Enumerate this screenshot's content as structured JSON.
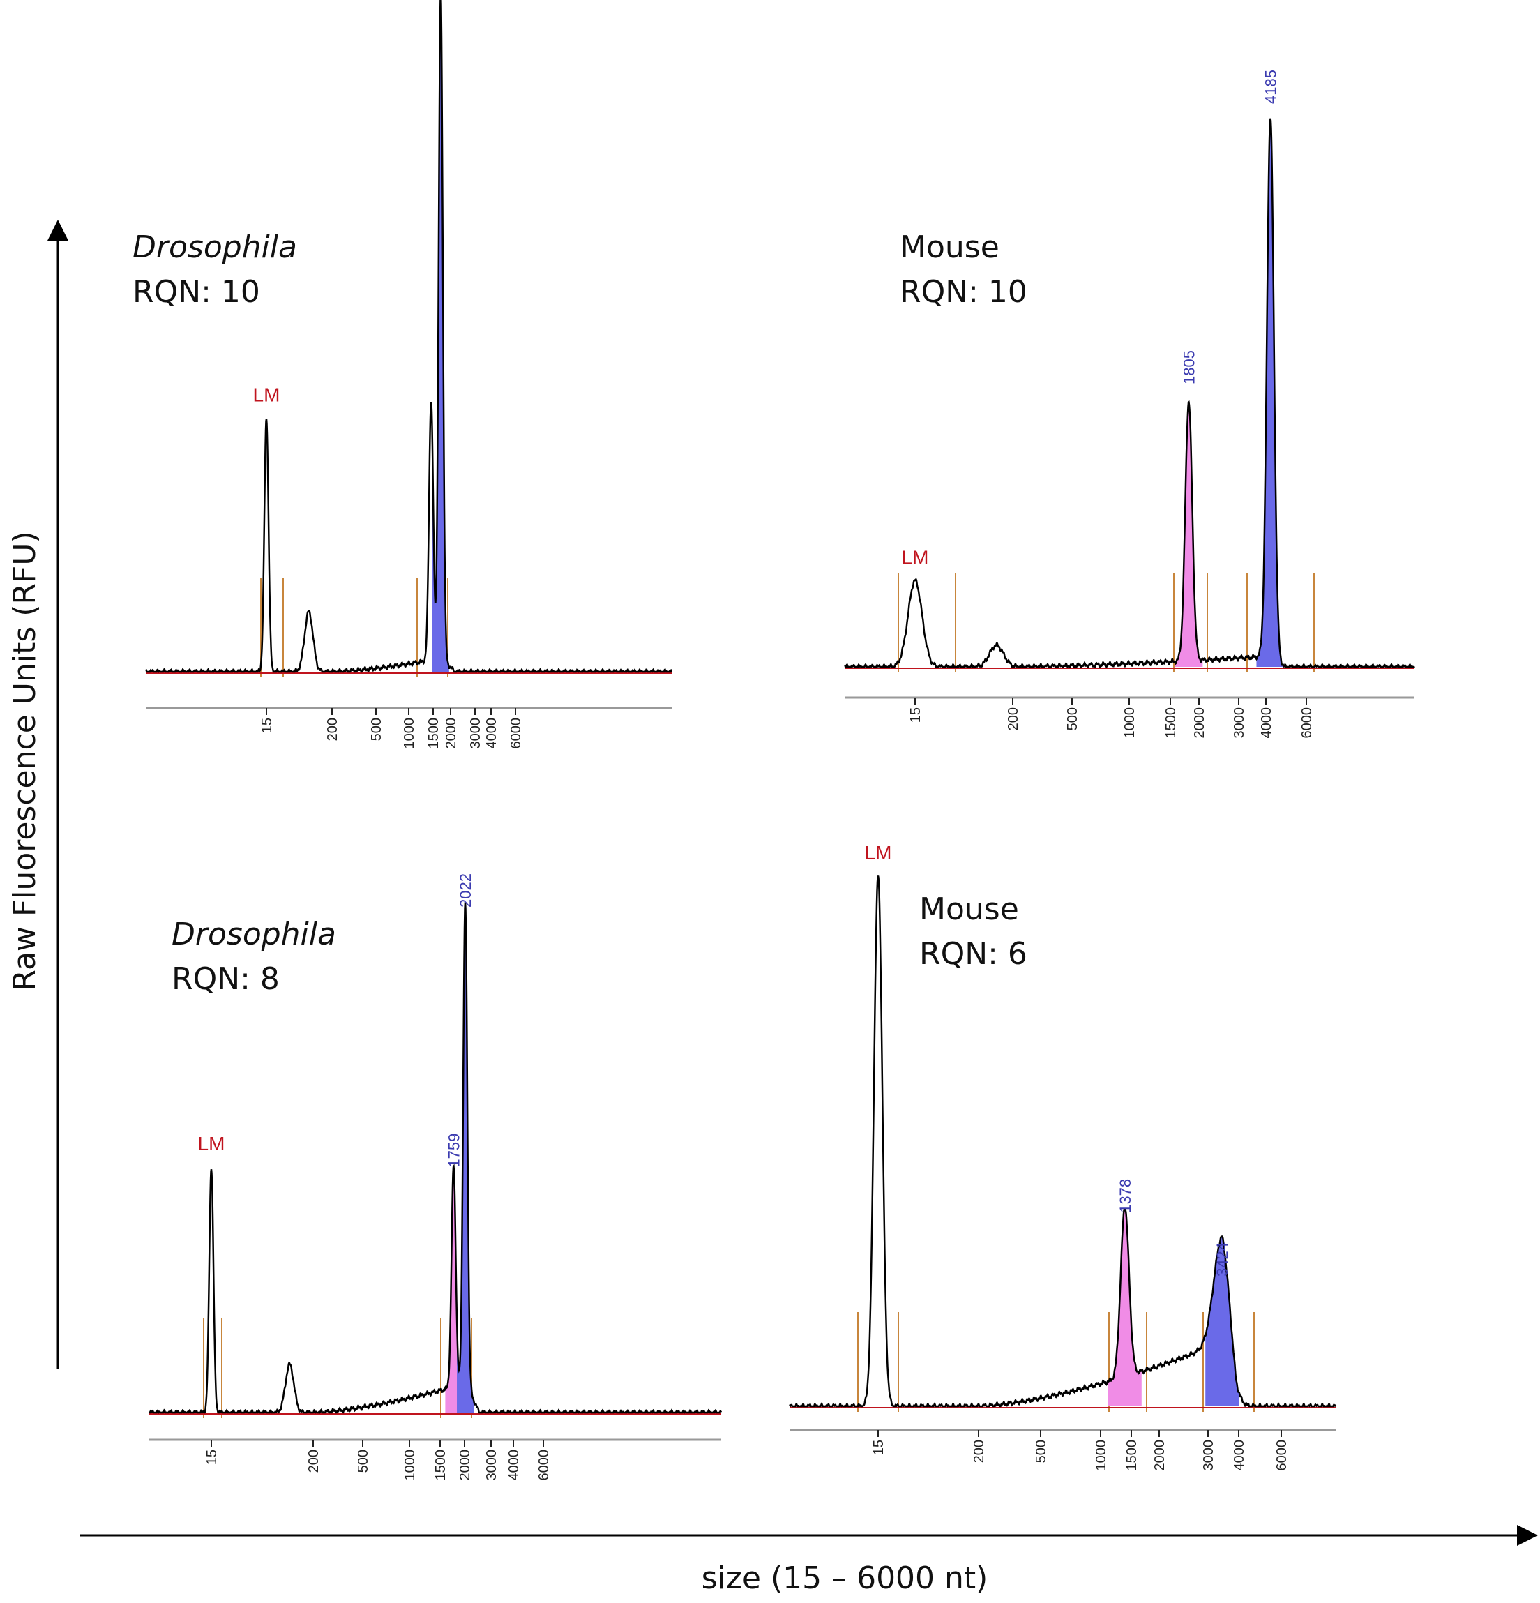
{
  "y_axis_label": "Raw Fluorescence Units (RFU)",
  "x_axis_label": "size (15 – 6000 nt)",
  "colors": {
    "trace": "#000000",
    "baseline": "#c0141e",
    "marker": "#c8863c",
    "peak_label": "#3b3bb0",
    "lm_label": "#c0141e",
    "fill_blue": "#6a6ae8",
    "fill_pink": "#f08ce6"
  },
  "chart_data": [
    {
      "type": "line",
      "organism": "Drosophila",
      "organism_italic": true,
      "rqn": "RQN: 10",
      "ticks": [
        "15",
        "200",
        "500",
        "1000",
        "1500",
        "2000",
        "3000",
        "4000",
        "6000"
      ],
      "lm_label": "LM",
      "peaks": [
        {
          "size": 15,
          "rel_height": 0.38,
          "label": "LM"
        },
        {
          "size": 80,
          "rel_height": 0.09,
          "label": ""
        },
        {
          "size": 1450,
          "rel_height": 0.39,
          "label": "",
          "fill": "none"
        },
        {
          "size": 1700,
          "rel_height": 1.0,
          "label": "",
          "fill": "blue"
        }
      ]
    },
    {
      "type": "line",
      "organism": "Mouse",
      "organism_italic": false,
      "rqn": "RQN: 10",
      "ticks": [
        "15",
        "200",
        "500",
        "1000",
        "1500",
        "2000",
        "3000",
        "4000",
        "6000"
      ],
      "lm_label": "LM",
      "peaks": [
        {
          "size": 15,
          "rel_height": 0.16,
          "label": "LM"
        },
        {
          "size": 130,
          "rel_height": 0.04,
          "label": ""
        },
        {
          "size": 1805,
          "rel_height": 0.48,
          "label": "1805",
          "fill": "pink"
        },
        {
          "size": 4185,
          "rel_height": 1.0,
          "label": "4185",
          "fill": "blue"
        }
      ]
    },
    {
      "type": "line",
      "organism": "Drosophila",
      "organism_italic": true,
      "rqn": "RQN: 8",
      "ticks": [
        "15",
        "200",
        "500",
        "1000",
        "1500",
        "2000",
        "3000",
        "4000",
        "6000"
      ],
      "lm_label": "LM",
      "peaks": [
        {
          "size": 15,
          "rel_height": 0.51,
          "label": "LM"
        },
        {
          "size": 110,
          "rel_height": 0.1,
          "label": ""
        },
        {
          "size": 1759,
          "rel_height": 0.46,
          "label": "1759",
          "fill": "pink"
        },
        {
          "size": 2022,
          "rel_height": 1.0,
          "label": "2022",
          "fill": "blue"
        }
      ]
    },
    {
      "type": "line",
      "organism": "Mouse",
      "organism_italic": false,
      "rqn": "RQN: 6",
      "ticks": [
        "15",
        "200",
        "500",
        "1000",
        "1500",
        "2000",
        "3000",
        "4000",
        "6000"
      ],
      "lm_label": "LM",
      "peaks": [
        {
          "size": 15,
          "rel_height": 1.0,
          "label": "LM"
        },
        {
          "size": 1378,
          "rel_height": 0.32,
          "label": "1378",
          "fill": "pink"
        },
        {
          "size": 3424,
          "rel_height": 0.2,
          "label": "3424",
          "fill": "blue"
        }
      ]
    }
  ]
}
